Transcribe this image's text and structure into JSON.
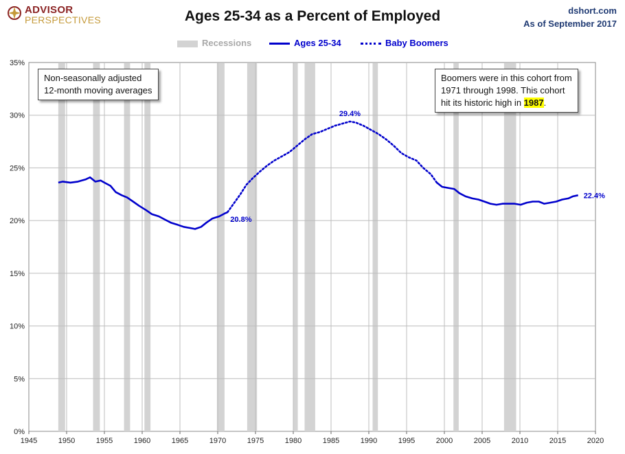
{
  "logo": {
    "line1": "ADVISOR",
    "line2": "PERSPECTIVES"
  },
  "header": {
    "title": "Ages 25-34 as a Percent of Employed",
    "source": "dshort.com",
    "date": "As of September 2017"
  },
  "legend": {
    "recessions": "Recessions",
    "ages": "Ages 25-34",
    "boomers": "Baby Boomers"
  },
  "notes": {
    "left_line1": "Non-seasonally adjusted",
    "left_line2": "12-month moving averages",
    "right_line1": "Boomers were in this cohort from",
    "right_line2": "1971  through 1998.  This cohort",
    "right_line3_pre": "hit its historic high in ",
    "right_line3_hl": "1987",
    "right_line3_post": "."
  },
  "colors": {
    "line": "#0000cc",
    "recession": "#d3d3d3",
    "grid": "#bdbdbd",
    "title": "#111111",
    "source": "#1f3a73"
  },
  "chart_data": {
    "type": "line",
    "title": "Ages 25-34 as a Percent of Employed",
    "xlim": [
      1945,
      2020
    ],
    "ylim": [
      0,
      35
    ],
    "x_ticks": [
      1945,
      1950,
      1955,
      1960,
      1965,
      1970,
      1975,
      1980,
      1985,
      1990,
      1995,
      2000,
      2005,
      2010,
      2015,
      2020
    ],
    "y_ticks": [
      0,
      5,
      10,
      15,
      20,
      25,
      30,
      35
    ],
    "y_tick_labels": [
      "0%",
      "5%",
      "10%",
      "15%",
      "20%",
      "25%",
      "30%",
      "35%"
    ],
    "grid": true,
    "legend_position": "top-center",
    "recessions": [
      [
        1948.9,
        1949.8
      ],
      [
        1953.5,
        1954.4
      ],
      [
        1957.6,
        1958.4
      ],
      [
        1960.3,
        1961.1
      ],
      [
        1969.9,
        1970.9
      ],
      [
        1973.9,
        1975.2
      ],
      [
        1980.0,
        1980.6
      ],
      [
        1981.5,
        1982.9
      ],
      [
        1990.5,
        1991.2
      ],
      [
        2001.2,
        2001.9
      ],
      [
        2007.9,
        2009.5
      ]
    ],
    "series": [
      {
        "name": "Ages 25-34",
        "style": "solid",
        "points": [
          [
            1948.9,
            23.6
          ],
          [
            1949.5,
            23.7
          ],
          [
            1950.5,
            23.6
          ],
          [
            1951.5,
            23.7
          ],
          [
            1952.5,
            23.9
          ],
          [
            1953.1,
            24.1
          ],
          [
            1953.8,
            23.7
          ],
          [
            1954.5,
            23.8
          ],
          [
            1955.0,
            23.6
          ],
          [
            1955.8,
            23.3
          ],
          [
            1956.5,
            22.7
          ],
          [
            1957.3,
            22.4
          ],
          [
            1958.0,
            22.2
          ],
          [
            1958.8,
            21.8
          ],
          [
            1959.6,
            21.4
          ],
          [
            1960.5,
            21.0
          ],
          [
            1961.3,
            20.6
          ],
          [
            1962.2,
            20.4
          ],
          [
            1963.0,
            20.1
          ],
          [
            1963.8,
            19.8
          ],
          [
            1964.7,
            19.6
          ],
          [
            1965.5,
            19.4
          ],
          [
            1966.3,
            19.3
          ],
          [
            1967.0,
            19.2
          ],
          [
            1967.8,
            19.4
          ],
          [
            1968.5,
            19.8
          ],
          [
            1969.3,
            20.2
          ],
          [
            1970.2,
            20.4
          ],
          [
            1971.0,
            20.7
          ],
          [
            1971.3,
            20.8
          ]
        ]
      },
      {
        "name": "Baby Boomers",
        "style": "dotted",
        "points": [
          [
            1971.3,
            20.8
          ],
          [
            1972.2,
            21.7
          ],
          [
            1973.0,
            22.5
          ],
          [
            1973.8,
            23.4
          ],
          [
            1974.6,
            24.0
          ],
          [
            1975.5,
            24.6
          ],
          [
            1976.5,
            25.2
          ],
          [
            1977.5,
            25.7
          ],
          [
            1978.5,
            26.1
          ],
          [
            1979.5,
            26.5
          ],
          [
            1980.5,
            27.1
          ],
          [
            1981.5,
            27.7
          ],
          [
            1982.5,
            28.2
          ],
          [
            1983.5,
            28.4
          ],
          [
            1984.5,
            28.7
          ],
          [
            1985.5,
            29.0
          ],
          [
            1986.5,
            29.2
          ],
          [
            1987.5,
            29.4
          ],
          [
            1988.3,
            29.3
          ],
          [
            1989.3,
            29.0
          ],
          [
            1990.3,
            28.6
          ],
          [
            1991.3,
            28.2
          ],
          [
            1992.3,
            27.7
          ],
          [
            1993.3,
            27.1
          ],
          [
            1994.3,
            26.4
          ],
          [
            1995.3,
            26.0
          ],
          [
            1996.3,
            25.7
          ],
          [
            1997.2,
            25.0
          ],
          [
            1998.2,
            24.4
          ],
          [
            1999.0,
            23.6
          ]
        ]
      },
      {
        "name": "Ages 25-34",
        "style": "solid",
        "points": [
          [
            1999.0,
            23.6
          ],
          [
            1999.7,
            23.2
          ],
          [
            2000.5,
            23.1
          ],
          [
            2001.3,
            23.0
          ],
          [
            2002.0,
            22.6
          ],
          [
            2002.8,
            22.3
          ],
          [
            2003.7,
            22.1
          ],
          [
            2004.5,
            22.0
          ],
          [
            2005.3,
            21.8
          ],
          [
            2006.1,
            21.6
          ],
          [
            2006.9,
            21.5
          ],
          [
            2007.7,
            21.6
          ],
          [
            2008.5,
            21.6
          ],
          [
            2009.3,
            21.6
          ],
          [
            2010.1,
            21.5
          ],
          [
            2010.9,
            21.7
          ],
          [
            2011.7,
            21.8
          ],
          [
            2012.5,
            21.8
          ],
          [
            2013.2,
            21.6
          ],
          [
            2014.0,
            21.7
          ],
          [
            2014.8,
            21.8
          ],
          [
            2015.6,
            22.0
          ],
          [
            2016.4,
            22.1
          ],
          [
            2017.0,
            22.3
          ],
          [
            2017.7,
            22.4
          ]
        ]
      }
    ],
    "annotations": [
      {
        "x": 1971.3,
        "y": 20.8,
        "text": "20.8%"
      },
      {
        "x": 1987.5,
        "y": 29.4,
        "text": "29.4%"
      },
      {
        "x": 2017.7,
        "y": 22.4,
        "text": "22.4%"
      }
    ]
  }
}
